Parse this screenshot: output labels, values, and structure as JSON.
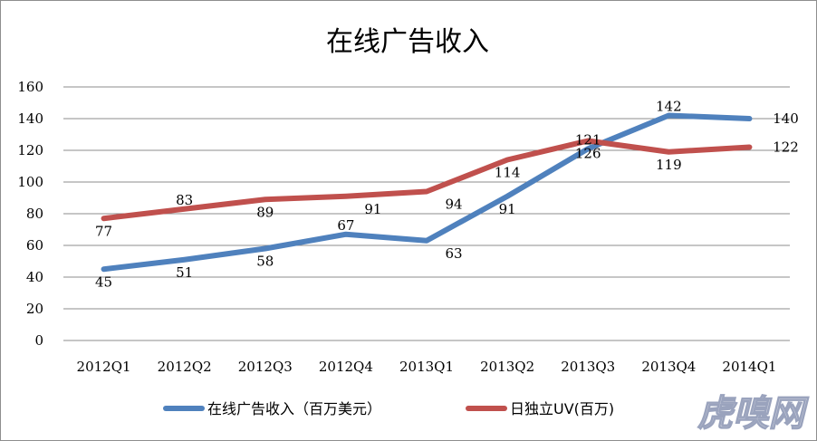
{
  "chart_data": {
    "type": "line",
    "title": "在线广告收入",
    "categories": [
      "2012Q1",
      "2012Q2",
      "2012Q3",
      "2012Q4",
      "2013Q1",
      "2013Q2",
      "2013Q3",
      "2013Q4",
      "2014Q1"
    ],
    "series": [
      {
        "name": "在线广告收入（百万美元）",
        "color": "#4f81bd",
        "values": [
          45,
          51,
          58,
          67,
          63,
          91,
          121,
          142,
          140
        ],
        "labels": [
          "45",
          "51",
          "58",
          "67",
          "63",
          "91",
          "121",
          "142",
          "140"
        ]
      },
      {
        "name": "日独立UV(百万)",
        "color": "#c0504d",
        "values": [
          77,
          83,
          89,
          91,
          94,
          114,
          126,
          119,
          122
        ],
        "labels": [
          "77",
          "83",
          "89",
          "91",
          "94",
          "114",
          "126",
          "119",
          "122"
        ]
      }
    ],
    "ylim": [
      0,
      160
    ],
    "yticks": [
      "0",
      "20",
      "40",
      "60",
      "80",
      "100",
      "120",
      "140",
      "160"
    ],
    "grid": true,
    "legend": "bottom"
  },
  "watermark": "虎嗅网"
}
